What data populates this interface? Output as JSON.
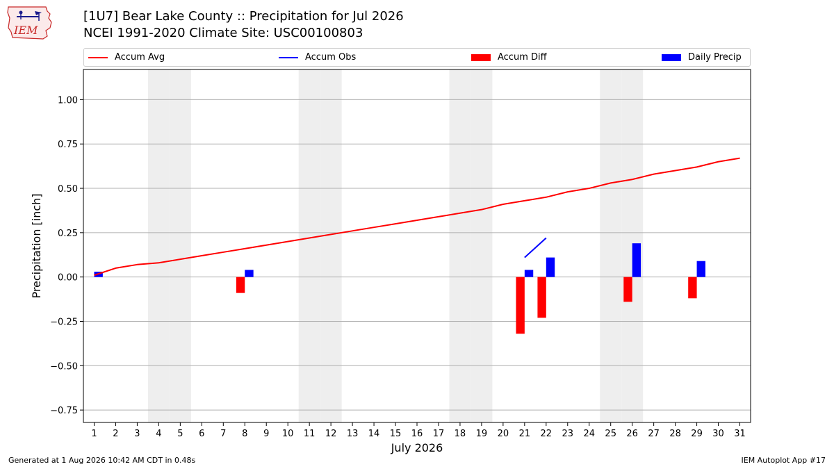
{
  "header": {
    "logo_text": "IEM",
    "title_line1": "[1U7] Bear Lake County :: Precipitation for Jul 2026",
    "title_line2": "NCEI 1991-2020 Climate Site: USC00100803"
  },
  "legend": {
    "items": [
      {
        "label": "Accum Avg",
        "kind": "line",
        "color": "#ff0000"
      },
      {
        "label": "Accum Obs",
        "kind": "line",
        "color": "#0000ff"
      },
      {
        "label": "Accum Diff",
        "kind": "bar",
        "color": "#ff0000"
      },
      {
        "label": "Daily Precip",
        "kind": "bar",
        "color": "#0000ff"
      }
    ]
  },
  "chart_data": {
    "type": "bar",
    "xlabel": "July 2026",
    "ylabel": "Precipitation [inch]",
    "ylim": [
      -0.82,
      1.17
    ],
    "yticks": [
      -0.75,
      -0.5,
      -0.25,
      0.0,
      0.25,
      0.5,
      0.75,
      1.0
    ],
    "ytick_labels": [
      "−0.75",
      "−0.50",
      "−0.25",
      "0.00",
      "0.25",
      "0.50",
      "0.75",
      "1.00"
    ],
    "xlim": [
      0.5,
      31.5
    ],
    "days": [
      1,
      2,
      3,
      4,
      5,
      6,
      7,
      8,
      9,
      10,
      11,
      12,
      13,
      14,
      15,
      16,
      17,
      18,
      19,
      20,
      21,
      22,
      23,
      24,
      25,
      26,
      27,
      28,
      29,
      30,
      31
    ],
    "weekend_days": [
      4,
      5,
      11,
      12,
      18,
      19,
      25,
      26
    ],
    "grid": "horizontal",
    "series": [
      {
        "name": "Accum Avg",
        "type": "line",
        "color": "#ff0000",
        "x": [
          1,
          2,
          3,
          4,
          5,
          6,
          7,
          8,
          9,
          10,
          11,
          12,
          13,
          14,
          15,
          16,
          17,
          18,
          19,
          20,
          21,
          22,
          23,
          24,
          25,
          26,
          27,
          28,
          29,
          30,
          31
        ],
        "values": [
          0.01,
          0.05,
          0.07,
          0.08,
          0.1,
          0.12,
          0.14,
          0.16,
          0.18,
          0.2,
          0.22,
          0.24,
          0.26,
          0.28,
          0.3,
          0.32,
          0.34,
          0.36,
          0.38,
          0.41,
          0.43,
          0.45,
          0.48,
          0.5,
          0.53,
          0.55,
          0.58,
          0.6,
          0.62,
          0.65,
          0.67
        ]
      },
      {
        "name": "Accum Obs",
        "type": "line",
        "color": "#0000ff",
        "x": [
          21,
          22
        ],
        "values": [
          0.11,
          0.22
        ]
      },
      {
        "name": "Accum Diff",
        "type": "bar",
        "color": "#ff0000",
        "x": [
          8,
          21,
          22,
          26,
          29
        ],
        "values": [
          -0.09,
          -0.32,
          -0.23,
          -0.14,
          -0.12
        ]
      },
      {
        "name": "Daily Precip",
        "type": "bar",
        "color": "#0000ff",
        "x": [
          1,
          8,
          21,
          22,
          26,
          29
        ],
        "values": [
          0.03,
          0.04,
          0.04,
          0.11,
          0.19,
          0.09
        ]
      }
    ]
  },
  "footer": {
    "left": "Generated at 1 Aug 2026 10:42 AM CDT in 0.48s",
    "right": "IEM Autoplot App #17"
  }
}
